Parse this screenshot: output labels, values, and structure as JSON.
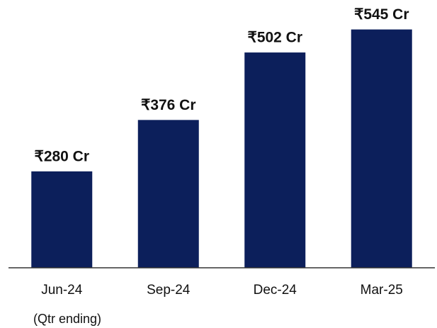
{
  "chart_data": {
    "type": "bar",
    "categories": [
      "Jun-24",
      "Sep-24",
      "Dec-24",
      "Mar-25"
    ],
    "values": [
      280,
      376,
      502,
      545
    ],
    "value_labels": [
      "₹280 Cr",
      "₹376 Cr",
      "₹502 Cr",
      "₹545 Cr"
    ],
    "color": "#0c1f5b",
    "ylim": [
      100,
      600
    ],
    "annotation": "(Qtr ending)"
  }
}
